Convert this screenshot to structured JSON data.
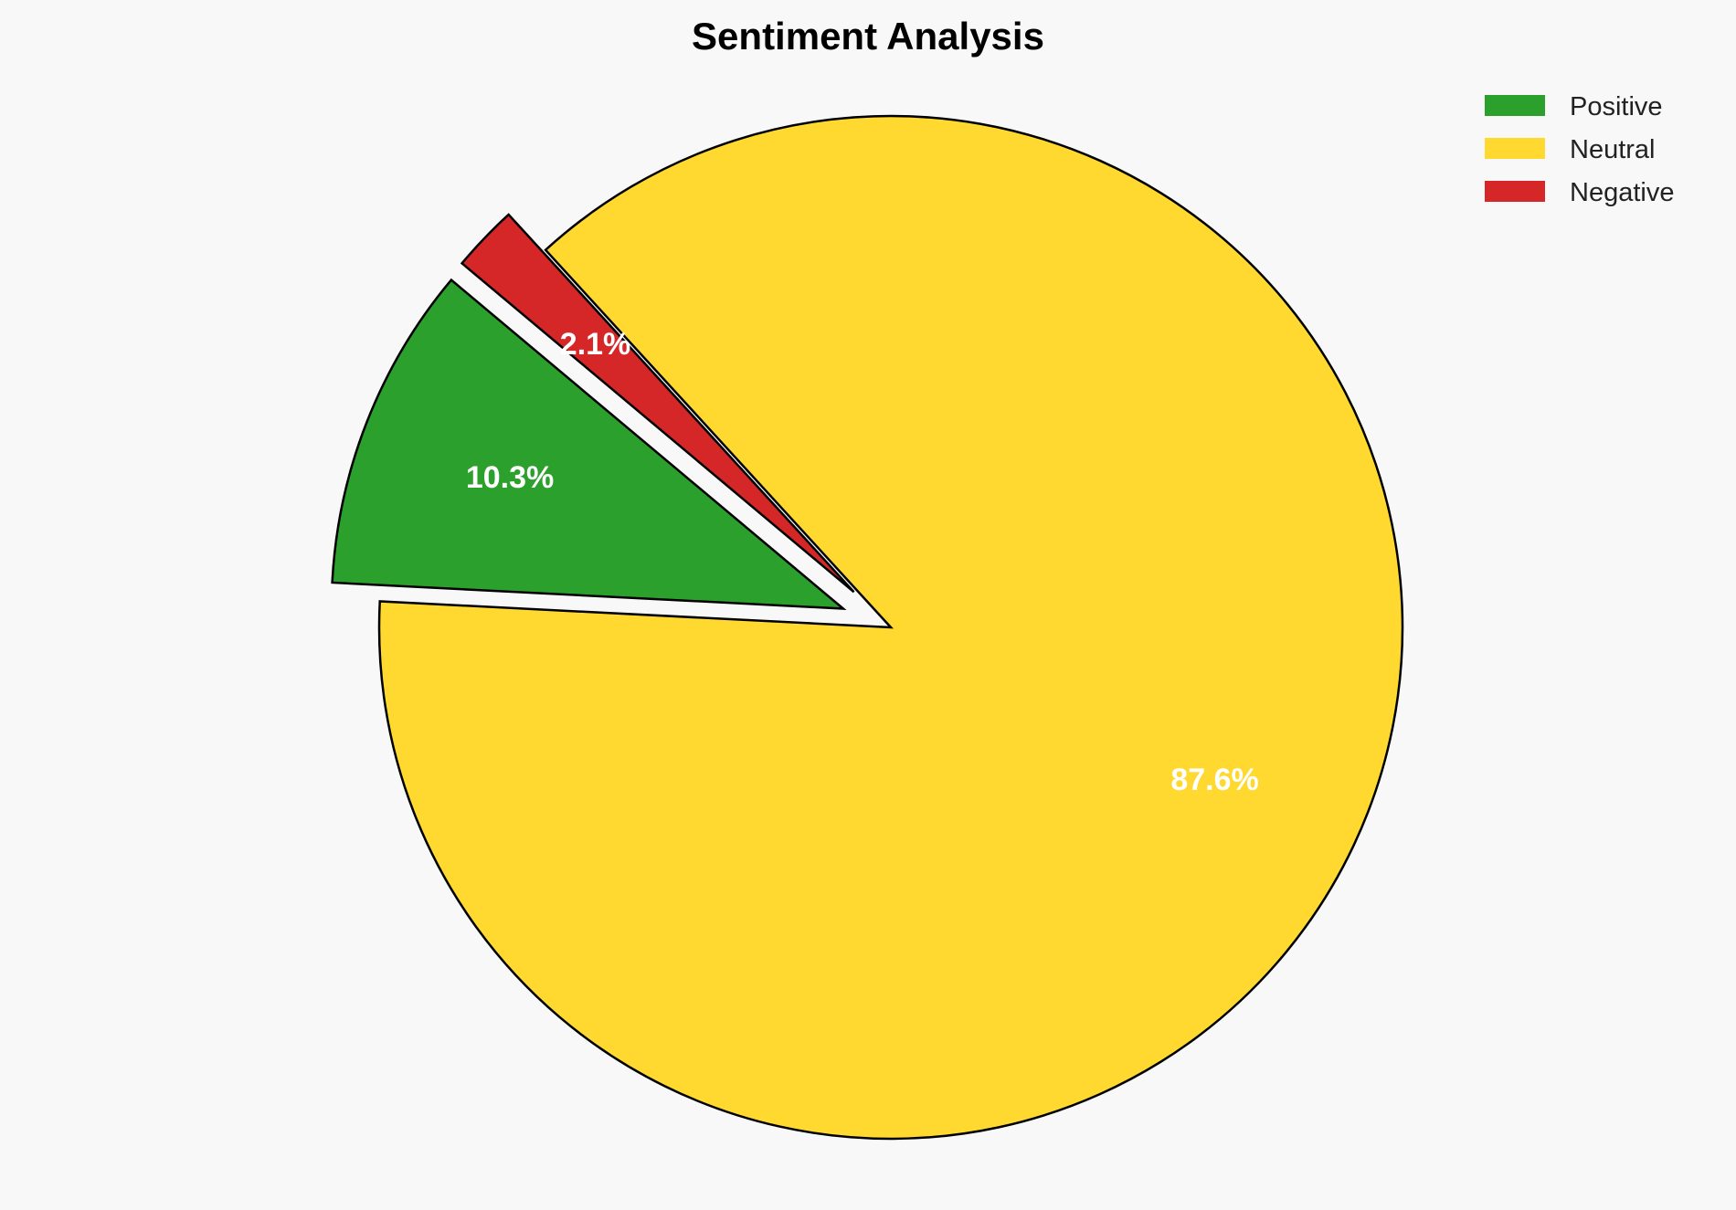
{
  "chart_data": {
    "type": "pie",
    "title": "Sentiment Analysis",
    "categories": [
      "Positive",
      "Neutral",
      "Negative"
    ],
    "values": [
      10.3,
      87.6,
      2.1
    ],
    "labels": [
      "10.3%",
      "87.6%",
      "2.1%"
    ],
    "colors": [
      "#2ca02c",
      "#ffd92f",
      "#d62728"
    ],
    "explode": [
      0.1,
      0,
      0.1
    ],
    "start_angle_deg": 140,
    "direction": "counterclockwise",
    "edge_color": "#000000",
    "legend_placement": "top-right",
    "background": "#f8f8f8"
  }
}
